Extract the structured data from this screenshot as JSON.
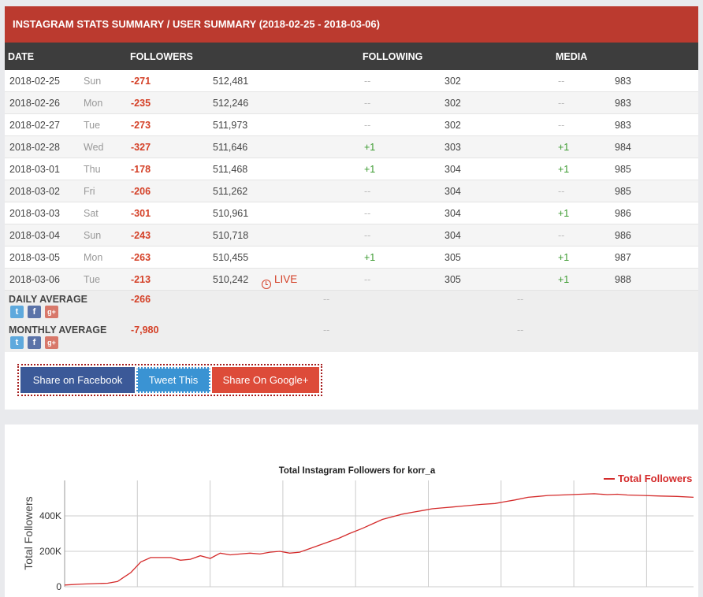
{
  "title": "INSTAGRAM STATS SUMMARY / USER SUMMARY (2018-02-25 - 2018-03-06)",
  "headers": {
    "date": "DATE",
    "followers": "FOLLOWERS",
    "following": "FOLLOWING",
    "media": "MEDIA"
  },
  "rows": [
    {
      "date": "2018-02-25",
      "day": "Sun",
      "followers_delta": "-271",
      "followers": "512,481",
      "following_delta": "--",
      "following": "302",
      "media_delta": "--",
      "media": "983",
      "live": ""
    },
    {
      "date": "2018-02-26",
      "day": "Mon",
      "followers_delta": "-235",
      "followers": "512,246",
      "following_delta": "--",
      "following": "302",
      "media_delta": "--",
      "media": "983",
      "live": ""
    },
    {
      "date": "2018-02-27",
      "day": "Tue",
      "followers_delta": "-273",
      "followers": "511,973",
      "following_delta": "--",
      "following": "302",
      "media_delta": "--",
      "media": "983",
      "live": ""
    },
    {
      "date": "2018-02-28",
      "day": "Wed",
      "followers_delta": "-327",
      "followers": "511,646",
      "following_delta": "+1",
      "following": "303",
      "media_delta": "+1",
      "media": "984",
      "live": ""
    },
    {
      "date": "2018-03-01",
      "day": "Thu",
      "followers_delta": "-178",
      "followers": "511,468",
      "following_delta": "+1",
      "following": "304",
      "media_delta": "+1",
      "media": "985",
      "live": ""
    },
    {
      "date": "2018-03-02",
      "day": "Fri",
      "followers_delta": "-206",
      "followers": "511,262",
      "following_delta": "--",
      "following": "304",
      "media_delta": "--",
      "media": "985",
      "live": ""
    },
    {
      "date": "2018-03-03",
      "day": "Sat",
      "followers_delta": "-301",
      "followers": "510,961",
      "following_delta": "--",
      "following": "304",
      "media_delta": "+1",
      "media": "986",
      "live": ""
    },
    {
      "date": "2018-03-04",
      "day": "Sun",
      "followers_delta": "-243",
      "followers": "510,718",
      "following_delta": "--",
      "following": "304",
      "media_delta": "--",
      "media": "986",
      "live": ""
    },
    {
      "date": "2018-03-05",
      "day": "Mon",
      "followers_delta": "-263",
      "followers": "510,455",
      "following_delta": "+1",
      "following": "305",
      "media_delta": "+1",
      "media": "987",
      "live": ""
    },
    {
      "date": "2018-03-06",
      "day": "Tue",
      "followers_delta": "-213",
      "followers": "510,242",
      "following_delta": "--",
      "following": "305",
      "media_delta": "+1",
      "media": "988",
      "live": "LIVE"
    }
  ],
  "daily_average": {
    "label": "DAILY AVERAGE",
    "value": "-266",
    "following": "--",
    "media": "--"
  },
  "monthly_average": {
    "label": "MONTHLY AVERAGE",
    "value": "-7,980",
    "following": "--",
    "media": "--"
  },
  "share": {
    "facebook": "Share on Facebook",
    "twitter": "Tweet This",
    "google": "Share On Google+"
  },
  "colors": {
    "brand_red": "#bb3a2f",
    "negative": "#d44027",
    "positive": "#3a9a2e",
    "line": "#d42b2b"
  },
  "chart_data": {
    "type": "line",
    "title": "Total Instagram Followers for korr_a",
    "ylabel": "Total Followers",
    "yticks": [
      "0",
      "200K",
      "400K"
    ],
    "ylim": [
      0,
      600000
    ],
    "legend": "top-right",
    "grid": true,
    "series": [
      {
        "name": "Total Followers",
        "x": [
          0,
          0.5,
          1,
          1.3,
          1.6,
          1.8,
          2,
          2.3,
          2.6,
          2.9,
          3.2,
          3.5,
          3.8,
          4.1,
          4.4,
          4.7,
          5,
          5.3,
          5.6,
          5.9,
          6.2,
          6.5,
          6.8,
          7.1,
          7.4,
          7.7,
          8,
          8.3,
          8.6,
          9,
          9.3,
          9.6,
          9.9,
          10.2,
          10.5,
          10.8,
          11.1,
          11.4,
          11.7,
          12,
          12.3,
          12.6,
          13,
          13.3,
          13.6,
          14,
          14.3,
          14.6,
          15,
          15.3,
          15.6,
          16,
          16.4,
          16.7,
          17,
          17.5,
          18,
          18.5,
          19
        ],
        "y": [
          10000,
          15000,
          18000,
          20000,
          30000,
          55000,
          80000,
          140000,
          165000,
          165000,
          165000,
          150000,
          155000,
          175000,
          160000,
          190000,
          180000,
          185000,
          190000,
          185000,
          195000,
          200000,
          190000,
          195000,
          215000,
          235000,
          255000,
          275000,
          300000,
          330000,
          355000,
          380000,
          395000,
          410000,
          420000,
          430000,
          440000,
          445000,
          450000,
          455000,
          460000,
          465000,
          470000,
          480000,
          490000,
          505000,
          510000,
          515000,
          518000,
          520000,
          522000,
          525000,
          520000,
          522000,
          518000,
          515000,
          512000,
          510000,
          505000
        ]
      }
    ]
  }
}
